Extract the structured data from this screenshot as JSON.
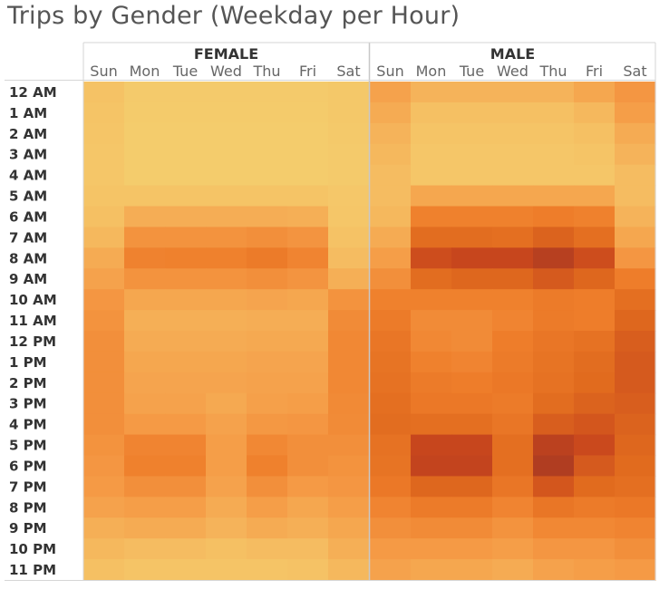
{
  "chart_data": {
    "type": "heatmap",
    "title": "Trips by Gender (Weekday per Hour)",
    "panels": [
      "FEMALE",
      "MALE"
    ],
    "days": [
      "Sun",
      "Mon",
      "Tue",
      "Wed",
      "Thu",
      "Fri",
      "Sat"
    ],
    "hours": [
      "12 AM",
      "1 AM",
      "2 AM",
      "3 AM",
      "4 AM",
      "5 AM",
      "6 AM",
      "7 AM",
      "8 AM",
      "9 AM",
      "10 AM",
      "11 AM",
      "12 PM",
      "1 PM",
      "2 PM",
      "3 PM",
      "4 PM",
      "5 PM",
      "6 PM",
      "7 PM",
      "8 PM",
      "9 PM",
      "10 PM",
      "11 PM"
    ],
    "intensity_scale": [
      0,
      100
    ],
    "color_scale": [
      "#f4d06f",
      "#f5bf63",
      "#f59b46",
      "#ee7d2a",
      "#e06a1e",
      "#c8461d",
      "#a83a22"
    ],
    "series": [
      {
        "name": "FEMALE",
        "values": [
          [
            14,
            6,
            6,
            6,
            6,
            6,
            8
          ],
          [
            12,
            5,
            5,
            5,
            5,
            5,
            8
          ],
          [
            11,
            4,
            4,
            4,
            4,
            4,
            7
          ],
          [
            10,
            4,
            4,
            4,
            4,
            4,
            6
          ],
          [
            10,
            4,
            4,
            4,
            4,
            4,
            6
          ],
          [
            12,
            12,
            12,
            12,
            12,
            12,
            9
          ],
          [
            16,
            25,
            25,
            25,
            25,
            24,
            10
          ],
          [
            20,
            38,
            38,
            38,
            40,
            37,
            14
          ],
          [
            26,
            47,
            48,
            48,
            52,
            46,
            18
          ],
          [
            30,
            38,
            38,
            38,
            40,
            37,
            24
          ],
          [
            36,
            28,
            28,
            28,
            29,
            28,
            38
          ],
          [
            38,
            24,
            24,
            24,
            25,
            25,
            42
          ],
          [
            40,
            26,
            26,
            26,
            27,
            27,
            44
          ],
          [
            40,
            28,
            28,
            28,
            29,
            29,
            44
          ],
          [
            40,
            29,
            29,
            29,
            30,
            30,
            44
          ],
          [
            40,
            30,
            30,
            27,
            31,
            32,
            43
          ],
          [
            40,
            34,
            34,
            30,
            35,
            36,
            42
          ],
          [
            38,
            46,
            46,
            32,
            44,
            40,
            40
          ],
          [
            36,
            48,
            48,
            32,
            48,
            40,
            38
          ],
          [
            34,
            40,
            40,
            30,
            40,
            34,
            36
          ],
          [
            30,
            32,
            32,
            26,
            32,
            28,
            32
          ],
          [
            24,
            26,
            26,
            22,
            26,
            24,
            28
          ],
          [
            20,
            18,
            18,
            16,
            18,
            18,
            24
          ],
          [
            16,
            12,
            12,
            12,
            12,
            14,
            20
          ]
        ]
      },
      {
        "name": "MALE",
        "values": [
          [
            30,
            22,
            22,
            22,
            22,
            28,
            36
          ],
          [
            26,
            16,
            16,
            16,
            16,
            20,
            32
          ],
          [
            22,
            12,
            12,
            12,
            12,
            16,
            26
          ],
          [
            20,
            10,
            10,
            10,
            10,
            12,
            22
          ],
          [
            18,
            10,
            10,
            10,
            10,
            10,
            18
          ],
          [
            18,
            28,
            28,
            28,
            28,
            28,
            18
          ],
          [
            20,
            48,
            48,
            48,
            50,
            48,
            22
          ],
          [
            26,
            64,
            64,
            62,
            70,
            62,
            28
          ],
          [
            32,
            80,
            84,
            84,
            92,
            80,
            36
          ],
          [
            40,
            64,
            68,
            68,
            74,
            68,
            50
          ],
          [
            48,
            48,
            48,
            48,
            52,
            50,
            62
          ],
          [
            52,
            42,
            42,
            46,
            52,
            50,
            68
          ],
          [
            56,
            44,
            42,
            50,
            56,
            60,
            72
          ],
          [
            58,
            48,
            46,
            52,
            58,
            64,
            74
          ],
          [
            60,
            52,
            50,
            54,
            60,
            66,
            74
          ],
          [
            62,
            54,
            54,
            52,
            64,
            70,
            72
          ],
          [
            64,
            62,
            62,
            56,
            72,
            76,
            70
          ],
          [
            60,
            84,
            84,
            62,
            90,
            82,
            68
          ],
          [
            58,
            86,
            86,
            62,
            96,
            74,
            66
          ],
          [
            54,
            68,
            68,
            56,
            76,
            66,
            62
          ],
          [
            46,
            52,
            52,
            46,
            56,
            52,
            54
          ],
          [
            40,
            42,
            42,
            38,
            44,
            44,
            46
          ],
          [
            34,
            34,
            34,
            32,
            36,
            36,
            40
          ],
          [
            30,
            28,
            28,
            26,
            30,
            32,
            34
          ]
        ]
      }
    ]
  }
}
